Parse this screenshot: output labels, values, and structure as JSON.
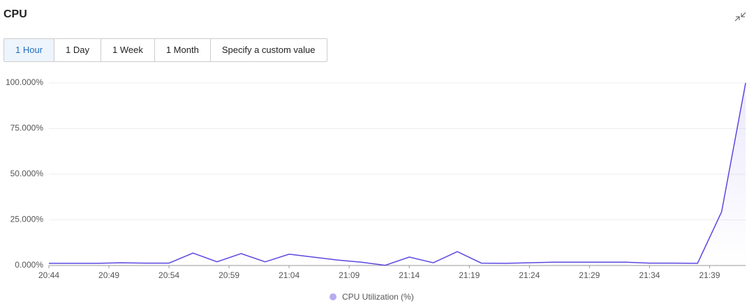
{
  "header": {
    "title": "CPU"
  },
  "tabs": [
    "1 Hour",
    "1 Day",
    "1 Week",
    "1 Month",
    "Specify a custom value"
  ],
  "chart_data": {
    "type": "line",
    "x": [
      "20:44",
      "20:48",
      "20:50",
      "20:52",
      "20:54",
      "20:56",
      "20:58",
      "21:00",
      "21:02",
      "21:04",
      "21:08",
      "21:10",
      "21:12",
      "21:14",
      "21:16",
      "21:18",
      "21:20",
      "21:22",
      "21:26",
      "21:32",
      "21:34",
      "21:36",
      "21:38",
      "21:40",
      "21:42"
    ],
    "series": [
      {
        "name": "CPU Utilization (%)",
        "color": "#5b47e0",
        "values": [
          1.2,
          1.2,
          1.5,
          1.3,
          1.3,
          6.8,
          2.0,
          6.5,
          2.0,
          6.2,
          3.0,
          1.8,
          0.1,
          4.6,
          1.5,
          7.6,
          1.3,
          1.2,
          1.8,
          1.8,
          1.3,
          1.3,
          1.2,
          29.4,
          100
        ]
      }
    ],
    "xlim": [
      "20:44",
      "21:42"
    ],
    "xticks": [
      "20:44",
      "20:49",
      "20:54",
      "20:59",
      "21:04",
      "21:09",
      "21:14",
      "21:19",
      "21:24",
      "21:29",
      "21:34",
      "21:39"
    ],
    "ylim": [
      0,
      100
    ],
    "yticks": [
      {
        "value": 0,
        "label": "0.000%"
      },
      {
        "value": 25,
        "label": "25.000%"
      },
      {
        "value": 50,
        "label": "50.000%"
      },
      {
        "value": 75,
        "label": "75.000%"
      },
      {
        "value": 100,
        "label": "100.000%"
      }
    ],
    "grid": true,
    "legend": "bottom"
  }
}
